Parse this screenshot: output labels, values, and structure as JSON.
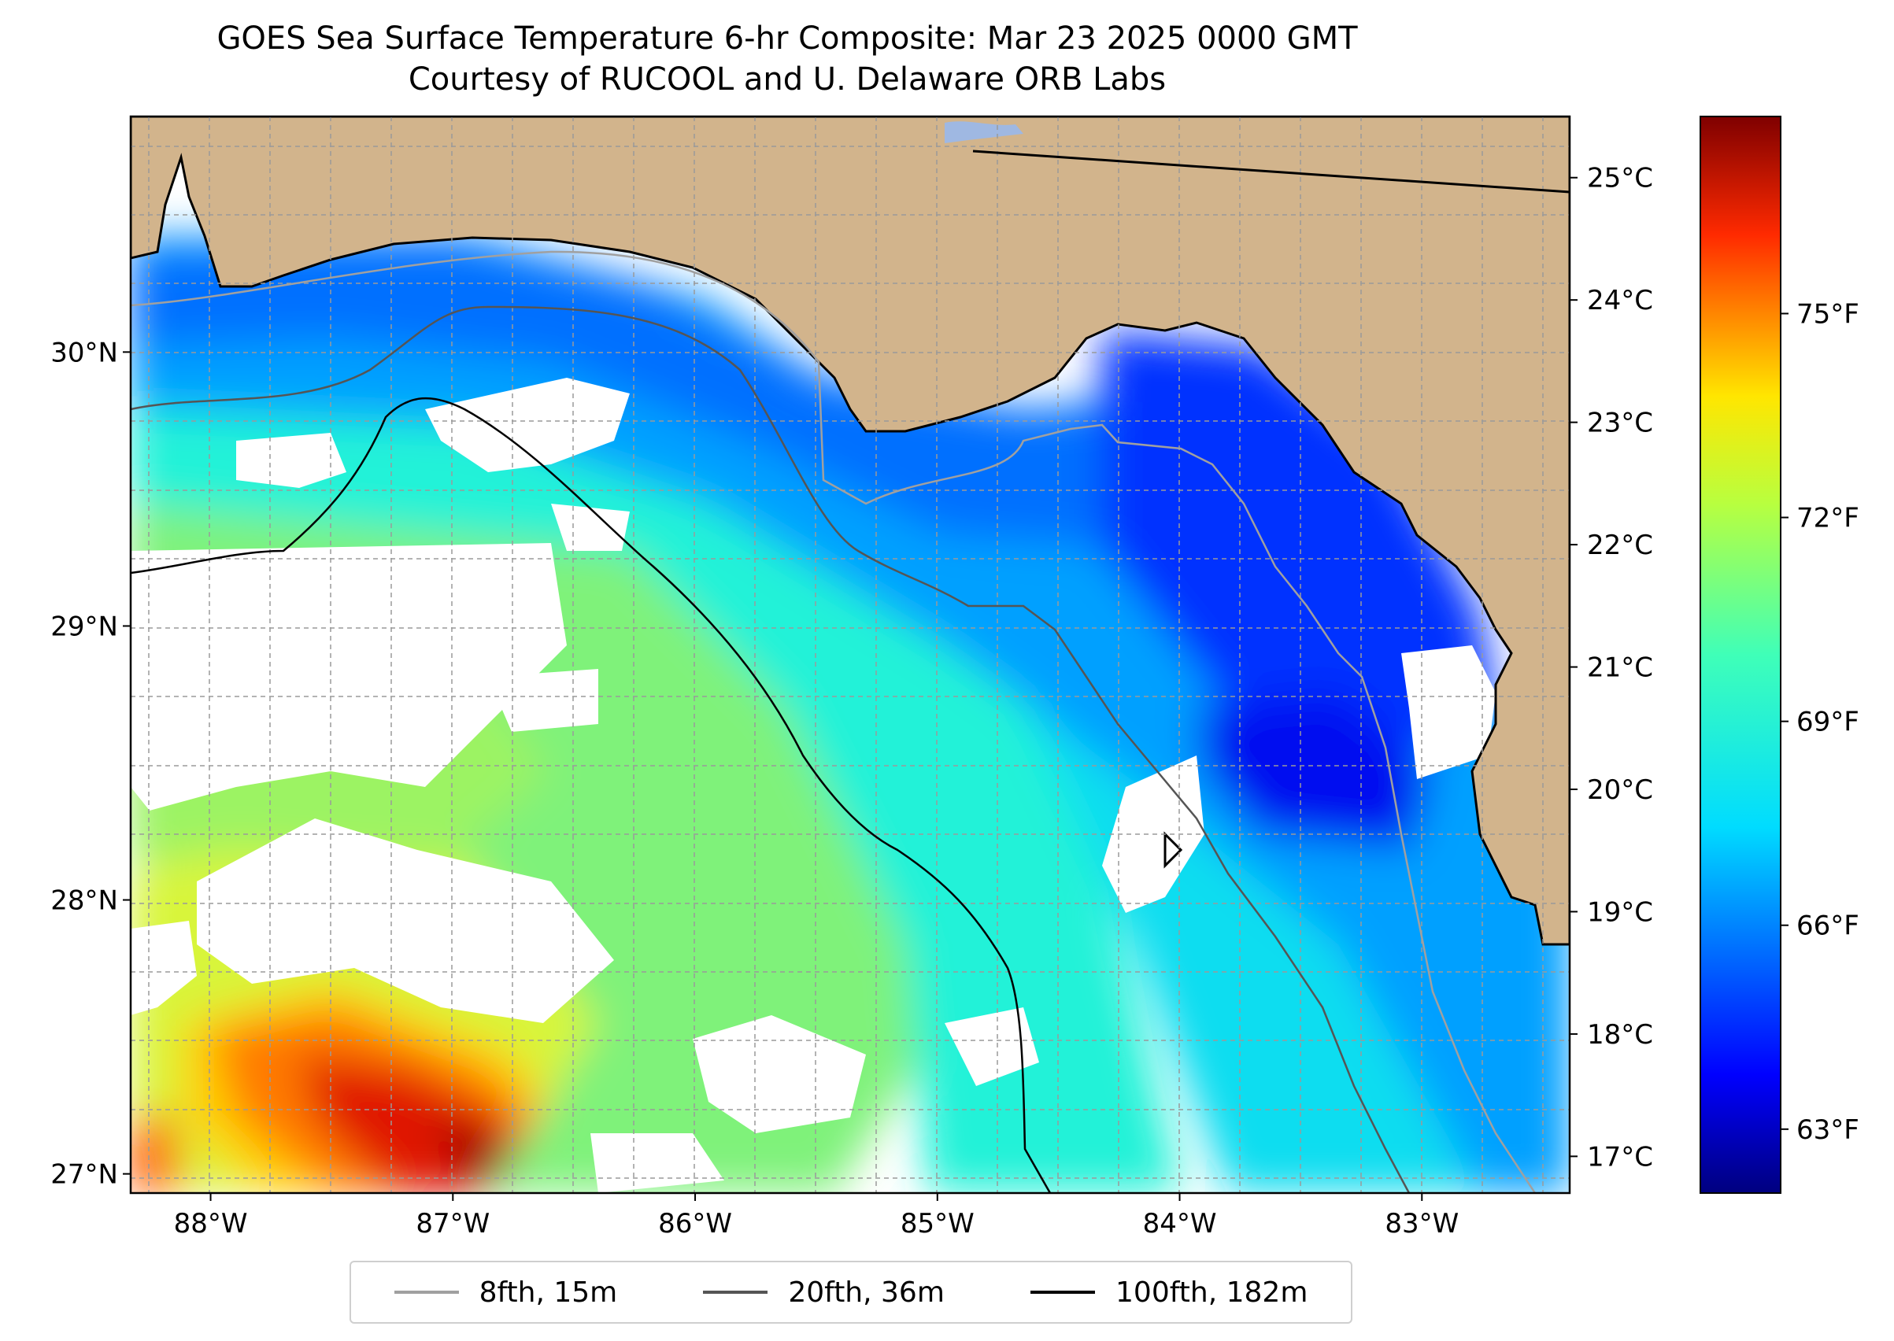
{
  "title": {
    "line1": "GOES Sea Surface Temperature 6-hr Composite: Mar 23 2025 0000 GMT",
    "line2": "Courtesy of RUCOOL and U. Delaware ORB Labs"
  },
  "map": {
    "lon_range": [
      -88.33,
      -82.39
    ],
    "lat_range": [
      26.93,
      30.86
    ],
    "lat_ticks": [
      {
        "value": 30,
        "label": "30°N"
      },
      {
        "value": 29,
        "label": "29°N"
      },
      {
        "value": 28,
        "label": "28°N"
      },
      {
        "value": 27,
        "label": "27°N"
      }
    ],
    "lon_ticks": [
      {
        "value": -88,
        "label": "88°W"
      },
      {
        "value": -87,
        "label": "87°W"
      },
      {
        "value": -86,
        "label": "86°W"
      },
      {
        "value": -85,
        "label": "85°W"
      },
      {
        "value": -84,
        "label": "84°W"
      },
      {
        "value": -83,
        "label": "83°W"
      }
    ],
    "grid": true,
    "colors": {
      "land": "#d2b48c",
      "no_data": "#ffffff",
      "isobath_15m": "#a0a0a0",
      "isobath_36m": "#555555",
      "isobath_182m": "#000000",
      "coast": "#000000"
    }
  },
  "colorbar": {
    "colormap": "jet",
    "celsius_ticks": [
      {
        "value": 25,
        "label": "25°C"
      },
      {
        "value": 24,
        "label": "24°C"
      },
      {
        "value": 23,
        "label": "23°C"
      },
      {
        "value": 22,
        "label": "22°C"
      },
      {
        "value": 21,
        "label": "21°C"
      },
      {
        "value": 20,
        "label": "20°C"
      },
      {
        "value": 19,
        "label": "19°C"
      },
      {
        "value": 18,
        "label": "18°C"
      },
      {
        "value": 17,
        "label": "17°C"
      }
    ],
    "fahrenheit_ticks": [
      {
        "value": 75,
        "label": "75°F"
      },
      {
        "value": 72,
        "label": "72°F"
      },
      {
        "value": 69,
        "label": "69°F"
      },
      {
        "value": 66,
        "label": "66°F"
      },
      {
        "value": 63,
        "label": "63°F"
      }
    ],
    "range_c": [
      16.7,
      25.5
    ]
  },
  "legend": {
    "items": [
      {
        "label": "8fth, 15m",
        "color": "#a0a0a0"
      },
      {
        "label": "20fth, 36m",
        "color": "#555555"
      },
      {
        "label": "100fth, 182m",
        "color": "#000000"
      }
    ]
  }
}
